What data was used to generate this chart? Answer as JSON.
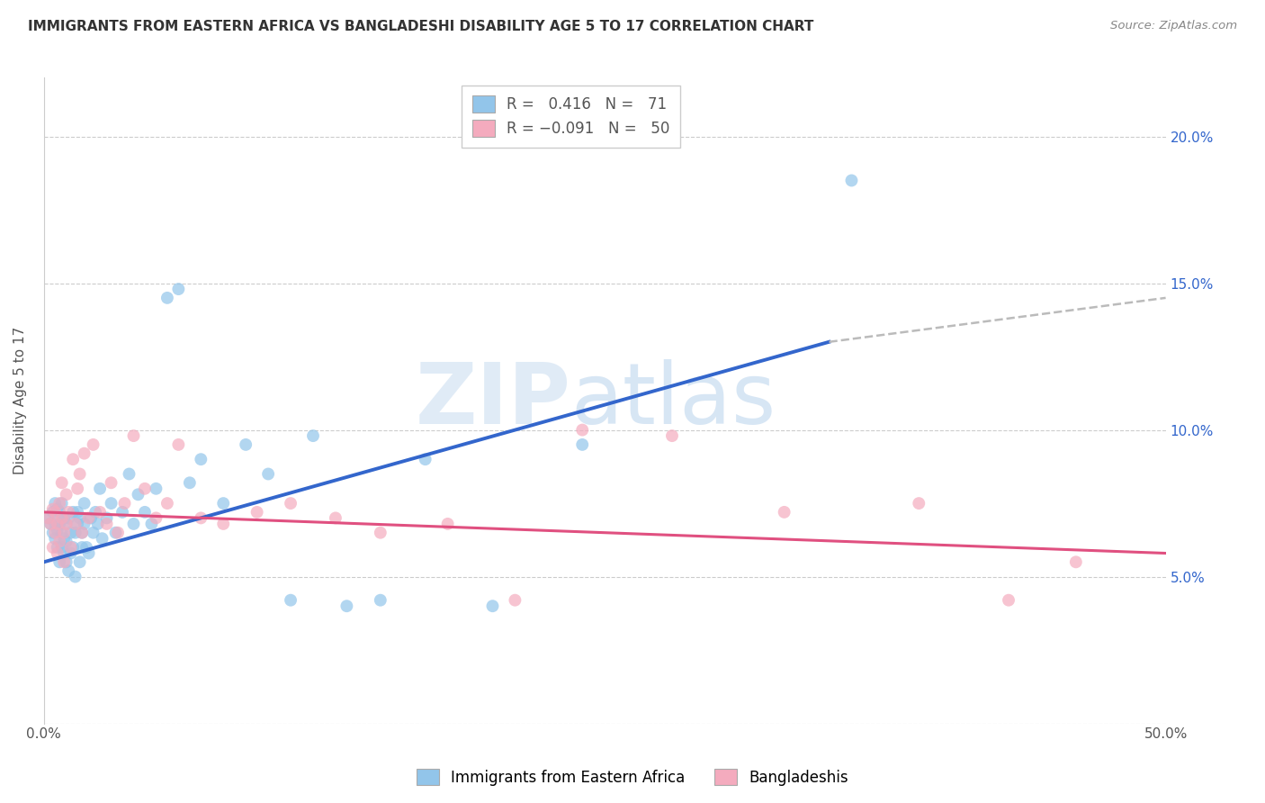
{
  "title": "IMMIGRANTS FROM EASTERN AFRICA VS BANGLADESHI DISABILITY AGE 5 TO 17 CORRELATION CHART",
  "source": "Source: ZipAtlas.com",
  "xlabel": "",
  "ylabel": "Disability Age 5 to 17",
  "xlim": [
    0.0,
    0.5
  ],
  "ylim": [
    0.0,
    0.22
  ],
  "xticks": [
    0.0,
    0.1,
    0.2,
    0.3,
    0.4,
    0.5
  ],
  "xticklabels": [
    "0.0%",
    "",
    "",
    "",
    "",
    "50.0%"
  ],
  "yticks_right": [
    0.05,
    0.1,
    0.15,
    0.2
  ],
  "yticklabels_right": [
    "5.0%",
    "10.0%",
    "15.0%",
    "20.0%"
  ],
  "R_blue": 0.416,
  "N_blue": 71,
  "R_pink": -0.091,
  "N_pink": 50,
  "blue_color": "#92C5EA",
  "pink_color": "#F4ABBE",
  "blue_line_color": "#3366CC",
  "pink_line_color": "#E05080",
  "dashed_line_color": "#BBBBBB",
  "watermark_zip": "ZIP",
  "watermark_atlas": "atlas",
  "blue_scatter_x": [
    0.002,
    0.003,
    0.004,
    0.004,
    0.005,
    0.005,
    0.005,
    0.006,
    0.006,
    0.006,
    0.007,
    0.007,
    0.007,
    0.008,
    0.008,
    0.008,
    0.009,
    0.009,
    0.009,
    0.01,
    0.01,
    0.01,
    0.011,
    0.011,
    0.012,
    0.012,
    0.013,
    0.013,
    0.014,
    0.014,
    0.015,
    0.015,
    0.016,
    0.016,
    0.017,
    0.017,
    0.018,
    0.018,
    0.019,
    0.02,
    0.021,
    0.022,
    0.023,
    0.024,
    0.025,
    0.026,
    0.028,
    0.03,
    0.032,
    0.035,
    0.038,
    0.04,
    0.042,
    0.045,
    0.048,
    0.05,
    0.055,
    0.06,
    0.065,
    0.07,
    0.08,
    0.09,
    0.1,
    0.11,
    0.12,
    0.135,
    0.15,
    0.17,
    0.2,
    0.24,
    0.36
  ],
  "blue_scatter_y": [
    0.07,
    0.068,
    0.072,
    0.065,
    0.075,
    0.063,
    0.068,
    0.073,
    0.066,
    0.06,
    0.072,
    0.055,
    0.068,
    0.075,
    0.06,
    0.065,
    0.063,
    0.07,
    0.058,
    0.068,
    0.055,
    0.062,
    0.07,
    0.052,
    0.065,
    0.058,
    0.072,
    0.06,
    0.065,
    0.05,
    0.068,
    0.072,
    0.055,
    0.07,
    0.06,
    0.065,
    0.068,
    0.075,
    0.06,
    0.058,
    0.07,
    0.065,
    0.072,
    0.068,
    0.08,
    0.063,
    0.07,
    0.075,
    0.065,
    0.072,
    0.085,
    0.068,
    0.078,
    0.072,
    0.068,
    0.08,
    0.145,
    0.148,
    0.082,
    0.09,
    0.075,
    0.095,
    0.085,
    0.042,
    0.098,
    0.04,
    0.042,
    0.09,
    0.04,
    0.095,
    0.185
  ],
  "pink_scatter_x": [
    0.002,
    0.003,
    0.004,
    0.004,
    0.005,
    0.005,
    0.006,
    0.006,
    0.007,
    0.007,
    0.008,
    0.008,
    0.009,
    0.009,
    0.01,
    0.01,
    0.011,
    0.012,
    0.013,
    0.014,
    0.015,
    0.016,
    0.017,
    0.018,
    0.02,
    0.022,
    0.025,
    0.028,
    0.03,
    0.033,
    0.036,
    0.04,
    0.045,
    0.05,
    0.055,
    0.06,
    0.07,
    0.08,
    0.095,
    0.11,
    0.13,
    0.15,
    0.18,
    0.21,
    0.24,
    0.28,
    0.33,
    0.39,
    0.43,
    0.46
  ],
  "pink_scatter_y": [
    0.07,
    0.068,
    0.073,
    0.06,
    0.072,
    0.065,
    0.068,
    0.058,
    0.075,
    0.062,
    0.07,
    0.082,
    0.065,
    0.055,
    0.078,
    0.068,
    0.072,
    0.06,
    0.09,
    0.068,
    0.08,
    0.085,
    0.065,
    0.092,
    0.07,
    0.095,
    0.072,
    0.068,
    0.082,
    0.065,
    0.075,
    0.098,
    0.08,
    0.07,
    0.075,
    0.095,
    0.07,
    0.068,
    0.072,
    0.075,
    0.07,
    0.065,
    0.068,
    0.042,
    0.1,
    0.098,
    0.072,
    0.075,
    0.042,
    0.055
  ],
  "blue_line_x_start": 0.0,
  "blue_line_x_end": 0.35,
  "blue_line_y_start": 0.055,
  "blue_line_y_end": 0.13,
  "pink_line_x_start": 0.0,
  "pink_line_x_end": 0.5,
  "pink_line_y_start": 0.072,
  "pink_line_y_end": 0.058,
  "dash_line_x_start": 0.35,
  "dash_line_x_end": 0.5,
  "dash_line_y_start": 0.13,
  "dash_line_y_end": 0.145
}
